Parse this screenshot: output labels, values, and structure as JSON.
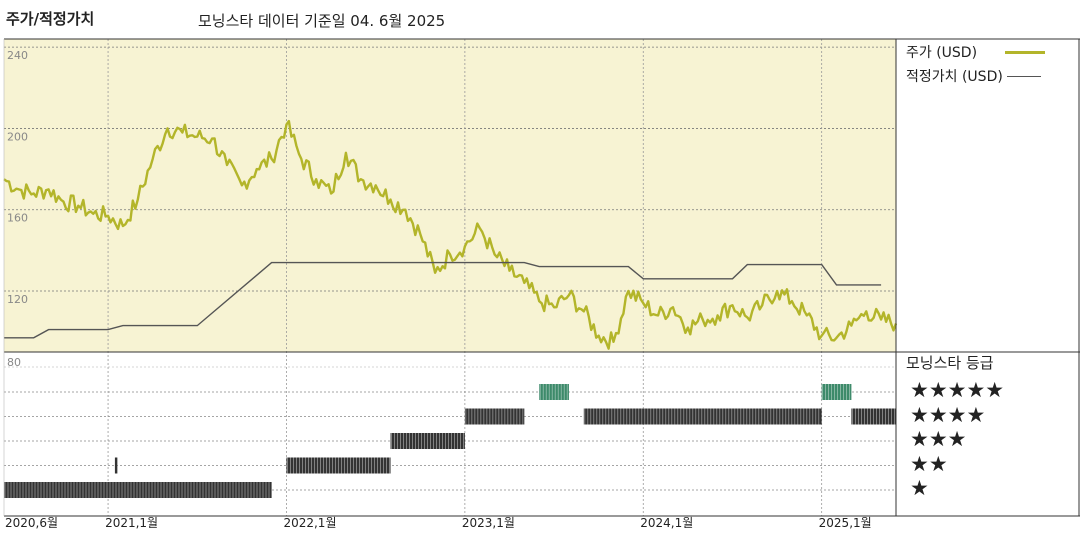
{
  "header": {
    "title": "주가/적정가치",
    "subtitle": "모닝스타 데이터 기준일 04. 6월 2025"
  },
  "legend": [
    {
      "label": "주가 (USD)",
      "color": "#b3b52a"
    },
    {
      "label": "적정가치 (USD)",
      "color": "#555555"
    }
  ],
  "rating_panel": {
    "title": "모닝스타 등급",
    "stars": [
      "★★★★★",
      "★★★★",
      "★★★",
      "★★",
      "★"
    ]
  },
  "colors": {
    "panel_bg": "#f7f3d3",
    "price_line": "#b3b52a",
    "fair_value_line": "#555555",
    "rating_bar": "#333333",
    "five_star_bar": "#3d8a6a"
  },
  "chart_data": [
    {
      "type": "line",
      "ylim": [
        90,
        244
      ],
      "yticks": [
        240,
        200,
        160,
        120
      ],
      "xlim": [
        "2020-06",
        "2025-06"
      ],
      "xticks": [
        "2020,6월",
        "2021,1월",
        "2022,1월",
        "2023,1월",
        "2024,1월",
        "2025,1월"
      ],
      "series": [
        {
          "name": "주가 (USD)",
          "x": [
            "2020-06",
            "2020-07",
            "2020-08",
            "2020-09",
            "2020-10",
            "2020-11",
            "2020-12",
            "2021-01",
            "2021-02",
            "2021-03",
            "2021-04",
            "2021-05",
            "2021-06",
            "2021-07",
            "2021-08",
            "2021-09",
            "2021-10",
            "2021-11",
            "2021-12",
            "2022-01",
            "2022-02",
            "2022-03",
            "2022-04",
            "2022-05",
            "2022-06",
            "2022-07",
            "2022-08",
            "2022-09",
            "2022-10",
            "2022-11",
            "2022-12",
            "2023-01",
            "2023-02",
            "2023-03",
            "2023-04",
            "2023-05",
            "2023-06",
            "2023-07",
            "2023-08",
            "2023-09",
            "2023-10",
            "2023-11",
            "2023-12",
            "2024-01",
            "2024-02",
            "2024-03",
            "2024-04",
            "2024-05",
            "2024-06",
            "2024-07",
            "2024-08",
            "2024-09",
            "2024-10",
            "2024-11",
            "2024-12",
            "2025-01",
            "2025-02",
            "2025-03",
            "2025-04",
            "2025-05",
            "2025-06"
          ],
          "values": [
            175,
            170,
            168,
            170,
            164,
            162,
            158,
            157,
            152,
            165,
            185,
            200,
            198,
            196,
            195,
            182,
            172,
            180,
            185,
            202,
            185,
            175,
            168,
            188,
            175,
            172,
            165,
            160,
            148,
            129,
            138,
            142,
            151,
            138,
            130,
            124,
            115,
            112,
            118,
            110,
            98,
            95,
            120,
            114,
            108,
            112,
            102,
            106,
            108,
            113,
            107,
            113,
            120,
            115,
            108,
            98,
            97,
            103,
            110,
            106,
            104
          ]
        },
        {
          "name": "적정가치 (USD)",
          "x": [
            "2020-06",
            "2020-08",
            "2020-09",
            "2021-01",
            "2021-02",
            "2021-07",
            "2021-12",
            "2022-01",
            "2022-12",
            "2023-01",
            "2023-05",
            "2023-06",
            "2023-12",
            "2024-01",
            "2024-07",
            "2024-08",
            "2025-01",
            "2025-02",
            "2025-05"
          ],
          "values": [
            97,
            97,
            101,
            101,
            103,
            103,
            134,
            134,
            134,
            134,
            134,
            132,
            132,
            126,
            126,
            133,
            133,
            123,
            123
          ]
        }
      ]
    },
    {
      "type": "bar",
      "title": "모닝스타 등급",
      "ylim": [
        0,
        80
      ],
      "ytick": 80,
      "series": [
        {
          "x": [
            "2020-06",
            "2021-12"
          ],
          "stars": 1
        },
        {
          "x": [
            "2021-01-15",
            "2021-01-20"
          ],
          "stars": 2
        },
        {
          "x": [
            "2022-01",
            "2022-08"
          ],
          "stars": 2
        },
        {
          "x": [
            "2022-08",
            "2023-01"
          ],
          "stars": 3
        },
        {
          "x": [
            "2023-01",
            "2023-05"
          ],
          "stars": 4
        },
        {
          "x": [
            "2023-06",
            "2023-08"
          ],
          "stars": 5
        },
        {
          "x": [
            "2023-09",
            "2025-01"
          ],
          "stars": 4
        },
        {
          "x": [
            "2025-01",
            "2025-03"
          ],
          "stars": 5
        },
        {
          "x": [
            "2025-03",
            "2025-06"
          ],
          "stars": 4
        }
      ]
    }
  ]
}
